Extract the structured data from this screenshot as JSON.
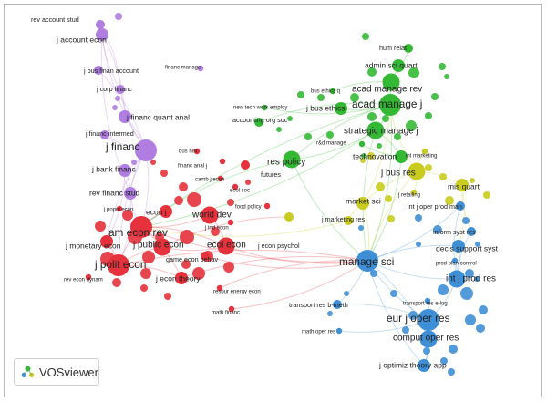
{
  "app": {
    "name": "VOSviewer"
  },
  "colors": {
    "purple": "#b07ee0",
    "green": "#35b935",
    "red": "#e5323c",
    "yellow": "#c9cc1e",
    "blue": "#3f8fd6",
    "label": "#222222"
  },
  "clusters": {
    "purple": {
      "color": "purple",
      "terms": [
        {
          "label": "rev account stud",
          "weight": 1
        },
        {
          "label": "j account econ",
          "weight": 2
        },
        {
          "label": "j bus finan account",
          "weight": 1
        },
        {
          "label": "financ manage",
          "weight": 0
        },
        {
          "label": "j corp financ",
          "weight": 1
        },
        {
          "label": "j financ quant anal",
          "weight": 2
        },
        {
          "label": "j financ intermed",
          "weight": 1
        },
        {
          "label": "j financ",
          "weight": 4
        },
        {
          "label": "j bank financ",
          "weight": 2
        },
        {
          "label": "rev financ stud",
          "weight": 2
        }
      ]
    },
    "green": {
      "color": "green",
      "terms": [
        {
          "label": "hum relat",
          "weight": 1
        },
        {
          "label": "admin sci quart",
          "weight": 2
        },
        {
          "label": "bus ethics q",
          "weight": 0
        },
        {
          "label": "acad manage rev",
          "weight": 3
        },
        {
          "label": "acad manage j",
          "weight": 4
        },
        {
          "label": "new tech work employ",
          "weight": 0
        },
        {
          "label": "j bus ethics",
          "weight": 2
        },
        {
          "label": "accounting org soc",
          "weight": 1
        },
        {
          "label": "strategic manage j",
          "weight": 3
        },
        {
          "label": "r&d manage",
          "weight": 0
        },
        {
          "label": "res policy",
          "weight": 3
        },
        {
          "label": "technovation",
          "weight": 2
        }
      ]
    },
    "red": {
      "color": "red",
      "terms": [
        {
          "label": "bus hist",
          "weight": 0
        },
        {
          "label": "financ anal j",
          "weight": 0
        },
        {
          "label": "futures",
          "weight": 1
        },
        {
          "label": "camb j econ",
          "weight": 0
        },
        {
          "label": "ecol soc",
          "weight": 0
        },
        {
          "label": "food policy",
          "weight": 0
        },
        {
          "label": "j popul econ",
          "weight": 0
        },
        {
          "label": "econ j",
          "weight": 2
        },
        {
          "label": "world dev",
          "weight": 3
        },
        {
          "label": "j ind econ",
          "weight": 0
        },
        {
          "label": "am econ rev",
          "weight": 4
        },
        {
          "label": "j monetary econ",
          "weight": 2
        },
        {
          "label": "j public econ",
          "weight": 3
        },
        {
          "label": "ecol econ",
          "weight": 3
        },
        {
          "label": "game econ behav",
          "weight": 1
        },
        {
          "label": "j polit econ",
          "weight": 4
        },
        {
          "label": "rev econ dynam",
          "weight": 0
        },
        {
          "label": "j econ theory",
          "weight": 2
        },
        {
          "label": "resour energy econ",
          "weight": 0
        },
        {
          "label": "math financ",
          "weight": 0
        }
      ]
    },
    "yellow": {
      "color": "yellow",
      "terms": [
        {
          "label": "int marketing",
          "weight": 0
        },
        {
          "label": "j bus res",
          "weight": 3
        },
        {
          "label": "market sci",
          "weight": 2
        },
        {
          "label": "j retailing",
          "weight": 0
        },
        {
          "label": "j marketing res",
          "weight": 1
        },
        {
          "label": "j econ psychol",
          "weight": 1
        },
        {
          "label": "mis quart",
          "weight": 2
        }
      ]
    },
    "blue": {
      "color": "blue",
      "terms": [
        {
          "label": "int j oper prod man",
          "weight": 1
        },
        {
          "label": "inform syst res",
          "weight": 1
        },
        {
          "label": "decis support syst",
          "weight": 2
        },
        {
          "label": "prod plan control",
          "weight": 0
        },
        {
          "label": "manage sci",
          "weight": 4
        },
        {
          "label": "int j prod res",
          "weight": 3
        },
        {
          "label": "transport res b-meth",
          "weight": 1
        },
        {
          "label": "transport res e-log",
          "weight": 0
        },
        {
          "label": "eur j oper res",
          "weight": 4
        },
        {
          "label": "math oper res",
          "weight": 0
        },
        {
          "label": "comput oper res",
          "weight": 3
        },
        {
          "label": "j optimiz theory app",
          "weight": 2
        }
      ]
    }
  }
}
